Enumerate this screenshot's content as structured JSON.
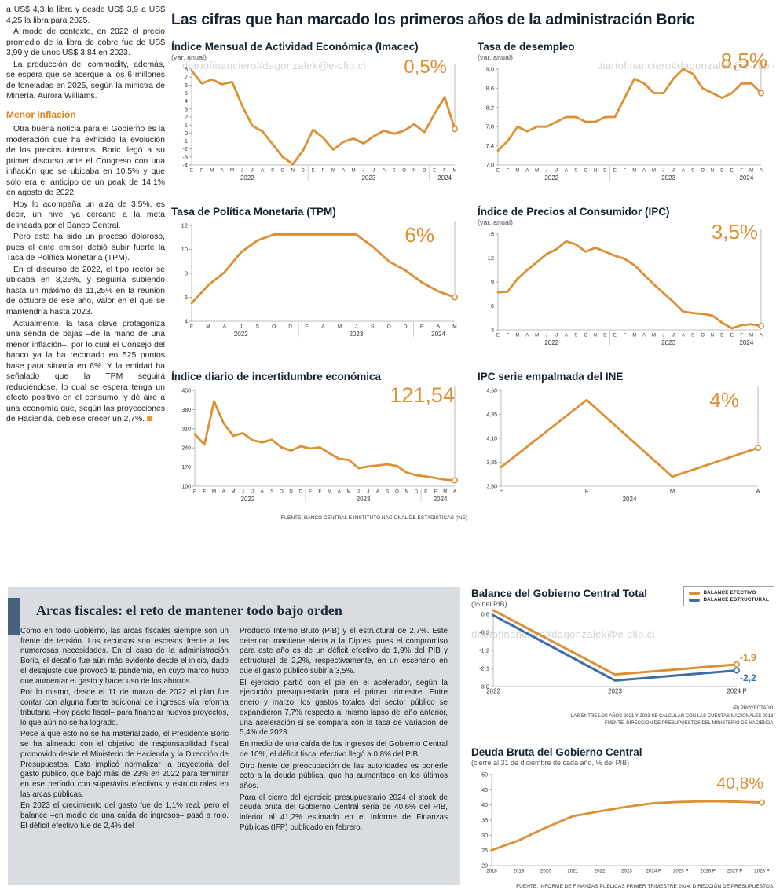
{
  "watermark": "diariofinanciero#dagonzalek@e-clip.cl",
  "main_title": "Las cifras que han marcado los primeros años de la administración Boric",
  "fuente_top": "FUENTE: BANCO CENTRAL E INSTITUTO NACIONAL DE ESTADÍSTICAS (INE)",
  "leftcol": {
    "p0": "a US$ 4,3 la libra y desde US$ 3,9 a US$ 4,25 la libra para 2025.",
    "p1": "A modo de contexto, en 2022 el precio promedio de la libra de cobre fue de US$ 3,99 y de unos US$ 3,84 en 2023.",
    "p2": "La producción del commodity, además, se espera que se acerque a los 6 millones de toneladas en 2025, según la ministra de Minería, Aurora Williams.",
    "heading": "Menor inflación",
    "p3": "Otra buena noticia para el Gobierno es la moderación que ha exhibido la evolución de los precios internos. Boric llegó a su primer discurso ante el Congreso con una inflación que se ubicaba en 10,5% y que sólo era el anticipo de un peak de 14,1% en agosto de 2022.",
    "p4": "Hoy lo acompaña un alza de 3,5%, es decir, un nivel ya cercano a la meta delineada por el Banco Central.",
    "p5": "Pero esto ha sido un proceso doloroso, pues el ente emisor debió subir fuerte la Tasa de Política Monetaria (TPM).",
    "p6": "En el discurso de 2022, el tipo rector se ubicaba en 8,25%, y seguiría subiendo hasta un máximo de 11,25% en la reunión de octubre de ese año, valor en el que se mantendría hasta 2023.",
    "p7": "Actualmente, la tasa clave protagoniza una senda de bajas –de la mano de una menor inflación–, por lo cual el Consejo del banco ya la ha recortado en 525 puntos base para situarla en 6%. Y la entidad ha señalado que la TPM seguirá reduciéndose, lo cual se espera tenga un efecto positivo en el consumo, y dé aire a una economía que, según las proyecciones de Hacienda, debiese crecer un 2,7%."
  },
  "arcas": {
    "title": "Arcas fiscales: el reto de mantener todo bajo orden",
    "col1": [
      "Como en todo Gobierno, las arcas fiscales siempre son un frente de tensión. Los recursos son escasos frente a las numerosas necesidades. En el caso de la administración Boric, el desafío fue aún más evidente desde el inicio, dado el desajuste que provocó la pandemia, en cuyo marco hubo que aumentar el gasto y hacer uso de los ahorros.",
      "Por lo mismo, desde el 11 de marzo de 2022 el plan fue contar con alguna fuente adicional de ingresos vía reforma tributaria –hoy pacto fiscal– para financiar nuevos proyectos, lo que aún no se ha logrado.",
      "Pese a que esto no se ha materializado, el Presidente Boric se ha alineado con el objetivo de responsabilidad fiscal promovido desde el Ministerio de Hacienda y la Dirección de Presupuestos. Esto implicó normalizar la trayectoria del gasto público, que bajó más de 23% en 2022 para terminar en ese período con superávits efectivos y estructurales en las arcas públicas.",
      "En 2023 el crecimiento del gasto fue de 1,1% real, pero el balance –en medio de una caída de ingresos– pasó a rojo. El déficit efectivo fue de 2,4% del"
    ],
    "col2": [
      "Producto Interno Bruto (PIB) y el estructural de 2,7%. Este deterioro mantiene alerta a la Dipres, pues el compromiso para este año es de un déficit efectivo de 1,9% del PIB y estructural de 2,2%, respectivamente, en un escenario en que el gasto público subiría 3,5%.",
      "El ejercicio partió con el pie en el acelerador, según la ejecución presupuestaria para el primer trimestre. Entre enero y marzo, los gastos totales del sector público se expandieron 7,7% respecto al mismo lapso del año anterior, una aceleración si se compara con la tasa de variación de 5,4% de 2023.",
      "En medio de una caída de los ingresos del Gobierno Central de 10%, el déficit fiscal efectivo llegó a 0,8% del PIB.",
      "Otro frente de preocupación de las autoridades es ponerle coto a la deuda pública, que ha aumentado en los últimos años.",
      "Para el cierre del ejercicio presupuestario 2024 el stock de deuda bruta del Gobierno Central sería de 40,6% del PIB, inferior al 41,2% estimado en el Informe de Finanzas Públicas (IFP) publicado en febrero."
    ]
  },
  "colors": {
    "orange": "#dd8f33",
    "blue": "#3d6fa5"
  },
  "chart_data": [
    {
      "id": "imacec",
      "type": "line",
      "title": "Índice Mensual de Actividad Económica (Imacec)",
      "subtitle": "(var. anual)",
      "end_label": "0,5%",
      "ylim": [
        -4,
        8
      ],
      "yticks": [
        8,
        7,
        6,
        5,
        4,
        3,
        2,
        1,
        0,
        -1,
        -2,
        -3,
        -4
      ],
      "ytick_labels": [
        "8",
        "7",
        "6",
        "5",
        "4",
        "3",
        "2",
        "1",
        "0",
        "-1",
        "-2",
        "-3",
        "-4"
      ],
      "x": [
        "E",
        "F",
        "M",
        "A",
        "M",
        "J",
        "J",
        "A",
        "S",
        "O",
        "N",
        "D",
        "E",
        "F",
        "M",
        "A",
        "M",
        "J",
        "J",
        "A",
        "S",
        "O",
        "N",
        "D",
        "E",
        "F",
        "M"
      ],
      "years": [
        {
          "label": "2022",
          "from": 0,
          "to": 11
        },
        {
          "label": "2023",
          "from": 12,
          "to": 23
        },
        {
          "label": "2024",
          "from": 24,
          "to": 26
        }
      ],
      "series": [
        {
          "name": "Imacec",
          "color": "#dd8f33",
          "values": [
            7.8,
            6.2,
            6.7,
            6.1,
            6.4,
            3.4,
            0.9,
            0.2,
            -1.4,
            -3.0,
            -3.9,
            -2.2,
            0.4,
            -0.6,
            -2.1,
            -1.1,
            -0.7,
            -1.3,
            -0.4,
            0.3,
            -0.1,
            0.3,
            1.1,
            0.1,
            2.4,
            4.5,
            0.5
          ]
        }
      ],
      "connector": true,
      "margins": {
        "l": 26,
        "r": 16,
        "t": 10,
        "b": 30
      },
      "xtick_size": 6
    },
    {
      "id": "desempleo",
      "type": "line",
      "title": "Tasa de desempleo",
      "subtitle": "(var. anual)",
      "end_label": "8,5%",
      "ylim": [
        7.0,
        9.0
      ],
      "yticks": [
        9.0,
        8.6,
        8.2,
        7.8,
        7.4,
        7.0
      ],
      "ytick_labels": [
        "9,0",
        "8,6",
        "8,2",
        "7,8",
        "7,4",
        "7,0"
      ],
      "x": [
        "E",
        "F",
        "M",
        "A",
        "M",
        "J",
        "J",
        "A",
        "S",
        "O",
        "N",
        "D",
        "E",
        "F",
        "M",
        "A",
        "M",
        "J",
        "J",
        "A",
        "S",
        "O",
        "N",
        "D",
        "E",
        "F",
        "M",
        "A"
      ],
      "years": [
        {
          "label": "2022",
          "from": 0,
          "to": 11
        },
        {
          "label": "2023",
          "from": 12,
          "to": 23
        },
        {
          "label": "2024",
          "from": 24,
          "to": 27
        }
      ],
      "series": [
        {
          "name": "Desempleo",
          "color": "#dd8f33",
          "values": [
            7.3,
            7.5,
            7.8,
            7.7,
            7.8,
            7.8,
            7.9,
            8.0,
            8.0,
            7.9,
            7.9,
            8.0,
            8.0,
            8.4,
            8.8,
            8.7,
            8.5,
            8.5,
            8.8,
            9.0,
            8.9,
            8.6,
            8.5,
            8.4,
            8.5,
            8.7,
            8.7,
            8.5
          ]
        }
      ],
      "connector": true,
      "margins": {
        "l": 26,
        "r": 16,
        "t": 10,
        "b": 30
      },
      "xtick_size": 6
    },
    {
      "id": "tpm",
      "type": "line",
      "title": "Tasa de Política Monetaria (TPM)",
      "end_label": "6%",
      "ylim": [
        4,
        12
      ],
      "yticks": [
        12,
        10,
        8,
        6,
        4
      ],
      "ytick_labels": [
        "12",
        "10",
        "8",
        "6",
        "4"
      ],
      "x": [
        "E",
        "M",
        "A",
        "J",
        "S",
        "O",
        "D",
        "E",
        "A",
        "M",
        "J",
        "S",
        "O",
        "D",
        "E",
        "A",
        "M"
      ],
      "years": [
        {
          "label": "2022",
          "from": 0,
          "to": 6
        },
        {
          "label": "2023",
          "from": 7,
          "to": 13
        },
        {
          "label": "2024",
          "from": 14,
          "to": 16
        }
      ],
      "series": [
        {
          "name": "TPM",
          "color": "#dd8f33",
          "values": [
            5.5,
            7.0,
            8.1,
            9.75,
            10.75,
            11.25,
            11.25,
            11.25,
            11.25,
            11.25,
            11.25,
            10.25,
            9.0,
            8.25,
            7.25,
            6.5,
            6.0
          ]
        }
      ],
      "connector": true,
      "margins": {
        "l": 26,
        "r": 16,
        "t": 10,
        "b": 30
      },
      "xtick_size": 6.5
    },
    {
      "id": "ipc",
      "type": "line",
      "title": "Índice de Precios al Consumidor (IPC)",
      "subtitle": "(var. anual)",
      "end_label": "3,5%",
      "ylim": [
        3,
        15
      ],
      "yticks": [
        15,
        12,
        9,
        6,
        3
      ],
      "ytick_labels": [
        "15",
        "12",
        "9",
        "6",
        "3"
      ],
      "x": [
        "E",
        "F",
        "M",
        "A",
        "M",
        "J",
        "J",
        "A",
        "S",
        "O",
        "N",
        "D",
        "E",
        "F",
        "M",
        "A",
        "M",
        "J",
        "J",
        "A",
        "S",
        "O",
        "N",
        "D",
        "E",
        "F",
        "M",
        "A"
      ],
      "years": [
        {
          "label": "2022",
          "from": 0,
          "to": 11
        },
        {
          "label": "2023",
          "from": 12,
          "to": 23
        },
        {
          "label": "2024",
          "from": 24,
          "to": 27
        }
      ],
      "series": [
        {
          "name": "IPC",
          "color": "#dd8f33",
          "values": [
            7.7,
            7.8,
            9.4,
            10.5,
            11.5,
            12.5,
            13.1,
            14.1,
            13.7,
            12.8,
            13.3,
            12.8,
            12.3,
            11.9,
            11.1,
            9.9,
            8.7,
            7.6,
            6.5,
            5.3,
            5.1,
            5.0,
            4.8,
            3.9,
            3.2,
            3.6,
            3.7,
            3.5
          ]
        }
      ],
      "connector": true,
      "margins": {
        "l": 26,
        "r": 16,
        "t": 10,
        "b": 30
      },
      "xtick_size": 6
    },
    {
      "id": "incertidumbre",
      "type": "line",
      "title": "Índice diario de incertidumbre económica",
      "end_label": "121,54",
      "ylim": [
        100,
        450
      ],
      "yticks": [
        450,
        380,
        310,
        240,
        170,
        100
      ],
      "ytick_labels": [
        "450",
        "380",
        "310",
        "240",
        "170",
        "100"
      ],
      "x": [
        "E",
        "F",
        "M",
        "A",
        "M",
        "J",
        "J",
        "A",
        "S",
        "O",
        "N",
        "D",
        "E",
        "F",
        "M",
        "A",
        "M",
        "J",
        "J",
        "A",
        "S",
        "O",
        "N",
        "D",
        "E",
        "F",
        "M",
        "A"
      ],
      "years": [
        {
          "label": "2022",
          "from": 0,
          "to": 11
        },
        {
          "label": "2023",
          "from": 12,
          "to": 23
        },
        {
          "label": "2024",
          "from": 24,
          "to": 27
        }
      ],
      "series": [
        {
          "name": "Incertidumbre",
          "color": "#dd8f33",
          "values": [
            290,
            252,
            410,
            330,
            284,
            294,
            268,
            260,
            270,
            242,
            230,
            246,
            238,
            242,
            220,
            200,
            196,
            166,
            172,
            176,
            180,
            174,
            150,
            140,
            136,
            130,
            124,
            121.54
          ]
        }
      ],
      "connector": true,
      "margins": {
        "l": 30,
        "r": 16,
        "t": 10,
        "b": 30
      },
      "xtick_size": 6,
      "ytick_size": 7
    },
    {
      "id": "ipc_ine",
      "type": "line",
      "title": "IPC serie empalmada del INE",
      "end_label": "4%",
      "ylim": [
        3.6,
        4.6
      ],
      "yticks": [
        4.6,
        4.35,
        4.1,
        3.85,
        3.6
      ],
      "ytick_labels": [
        "4,60",
        "4,35",
        "4,10",
        "3,85",
        "3,60"
      ],
      "x": [
        "E",
        "F",
        "M",
        "A"
      ],
      "years": [
        {
          "label": "2024",
          "from": 0,
          "to": 3
        }
      ],
      "series": [
        {
          "name": "IPC INE",
          "color": "#dd8f33",
          "values": [
            3.8,
            4.5,
            3.7,
            4.0
          ]
        }
      ],
      "connector": true,
      "margins": {
        "l": 30,
        "r": 20,
        "t": 10,
        "b": 30
      },
      "xtick_size": 7.5,
      "ytick_size": 7
    },
    {
      "id": "balance",
      "type": "line",
      "title": "Balance del Gobierno Central Total",
      "subtitle": "(% del PIB)",
      "legend": [
        "BALANCE EFECTIVO",
        "BALANCE ESTRUCTURAL"
      ],
      "end_labels": {
        "efectivo": "-1,9",
        "estructural": "-2,2"
      },
      "notes": [
        "(P) PROYECTADO.",
        "LAS ENTRE LOS AÑOS 2021 Y 2023 SE CALCULAN CON LAS CUENTAS NACIONALES 2018.",
        "FUENTE: DIRECCIÓN DE PRESUPUESTOS DEL MINISTERIO DE HACIENDA."
      ],
      "ylim": [
        -3.0,
        0.6
      ],
      "yticks": [
        0.6,
        -0.3,
        -1.2,
        -2.1,
        -3.0
      ],
      "ytick_labels": [
        "0,6",
        "-0,3",
        "-1,2",
        "-2,1",
        "-3,0"
      ],
      "x": [
        "2022",
        "2023",
        "2024 P"
      ],
      "series": [
        {
          "name": "Balance efectivo",
          "color": "#dd8f33",
          "values": [
            0.8,
            -2.4,
            -1.9
          ]
        },
        {
          "name": "Balance estructural",
          "color": "#3d6fa5",
          "values": [
            0.55,
            -2.7,
            -2.2
          ]
        }
      ],
      "connector": false,
      "margins": {
        "l": 28,
        "r": 48,
        "t": 8,
        "b": 18
      },
      "xtick_size": 8,
      "lw": 3
    },
    {
      "id": "deuda",
      "type": "line",
      "title": "Deuda Bruta del Gobierno Central",
      "subtitle": "(cierre al 31 de diciembre de cada año, % del PIB)",
      "end_label": "40,8%",
      "fuente": "FUENTE: INFORME DE FINANZAS PÚBLICAS PRIMER TRIMESTRE 2024, DIRECCIÓN DE PRESUPUESTOS.",
      "ylim": [
        20,
        50
      ],
      "yticks": [
        50,
        45,
        40,
        35,
        30,
        25,
        20
      ],
      "ytick_labels": [
        "50",
        "45",
        "40",
        "35",
        "30",
        "25",
        "20"
      ],
      "x": [
        "2018",
        "2019",
        "2020",
        "2021",
        "2022",
        "2023",
        "2024 P",
        "2025 P",
        "2026 P",
        "2027 P",
        "2028 P"
      ],
      "series": [
        {
          "name": "Deuda bruta",
          "color": "#dd8f33",
          "values": [
            25.1,
            28.3,
            32.5,
            36.3,
            37.9,
            39.4,
            40.6,
            41.0,
            41.2,
            41.1,
            40.8
          ]
        }
      ],
      "connector": false,
      "margins": {
        "l": 26,
        "r": 16,
        "t": 10,
        "b": 16
      },
      "xtick_size": 6.2,
      "ytick_size": 7
    }
  ]
}
